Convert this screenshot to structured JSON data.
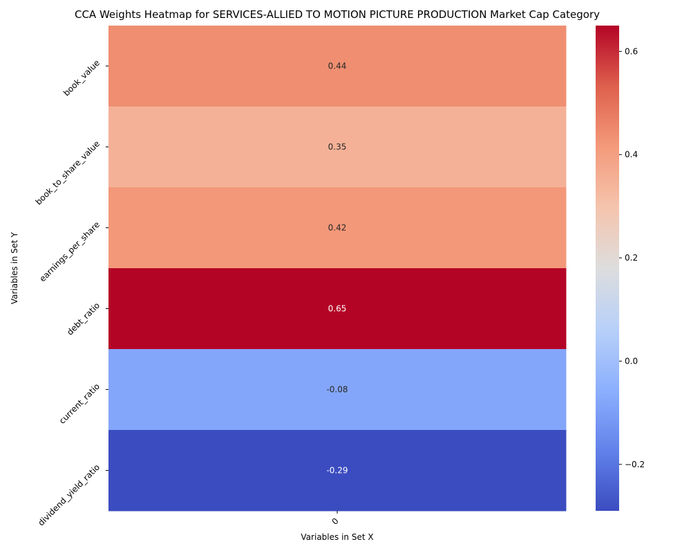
{
  "chart_data": {
    "type": "heatmap",
    "title": "CCA Weights Heatmap for SERVICES-ALLIED TO MOTION PICTURE PRODUCTION Market Cap Category",
    "xlabel": "Variables in Set X",
    "ylabel": "Variables in Set Y",
    "x_categories": [
      "0"
    ],
    "y_categories": [
      "book_value",
      "book_to_share_value",
      "earnings_per_share",
      "debt_ratio",
      "current_ratio",
      "dividend_yield_ratio"
    ],
    "values": [
      [
        0.44
      ],
      [
        0.35
      ],
      [
        0.42
      ],
      [
        0.65
      ],
      [
        -0.08
      ],
      [
        -0.29
      ]
    ],
    "labels": [
      "0.44",
      "0.35",
      "0.42",
      "0.65",
      "-0.08",
      "-0.29"
    ],
    "colormap": "coolwarm",
    "color_range": [
      -0.29,
      0.65
    ],
    "colorbar_ticks": [
      -0.2,
      0.0,
      0.2,
      0.4,
      0.6
    ],
    "colorbar_tick_labels": [
      "−0.2",
      "0.0",
      "0.2",
      "0.4",
      "0.6"
    ],
    "grid": false,
    "legend": "colorbar-right"
  }
}
